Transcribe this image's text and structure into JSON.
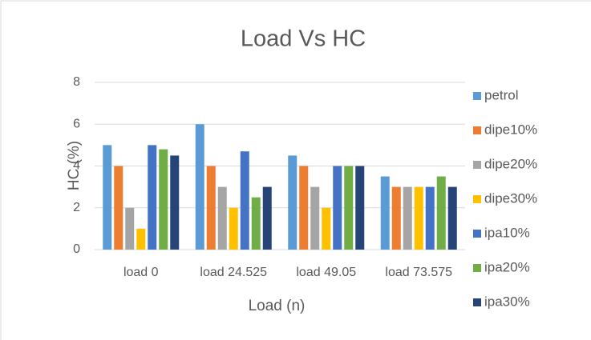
{
  "chart_data": {
    "type": "bar",
    "title": "Load Vs HC",
    "x_label": "Load (n)",
    "y_label": "HC (%)",
    "categories": [
      "load 0",
      "load 24.525",
      "load 49.05",
      "load 73.575"
    ],
    "series": [
      {
        "name": "petrol",
        "color": "#5b9bd5",
        "values": [
          5,
          6,
          4.5,
          3.5
        ]
      },
      {
        "name": "dipe10%",
        "color": "#ed7d31",
        "values": [
          4,
          4,
          4,
          3
        ]
      },
      {
        "name": "dipe20%",
        "color": "#a5a5a5",
        "values": [
          2,
          3,
          3,
          3
        ]
      },
      {
        "name": "dipe30%",
        "color": "#ffc000",
        "values": [
          1,
          2,
          2,
          3
        ]
      },
      {
        "name": "ipa10%",
        "color": "#4472c4",
        "values": [
          5,
          4.7,
          4,
          3
        ]
      },
      {
        "name": "ipa20%",
        "color": "#70ad47",
        "values": [
          4.8,
          2.5,
          4,
          3.5
        ]
      },
      {
        "name": "ipa30%",
        "color": "#264478",
        "values": [
          4.5,
          3,
          4,
          3
        ]
      }
    ],
    "ylim": [
      0,
      8
    ],
    "yticks": [
      0,
      2,
      4,
      6,
      8
    ],
    "grid": true,
    "legend": "right"
  }
}
